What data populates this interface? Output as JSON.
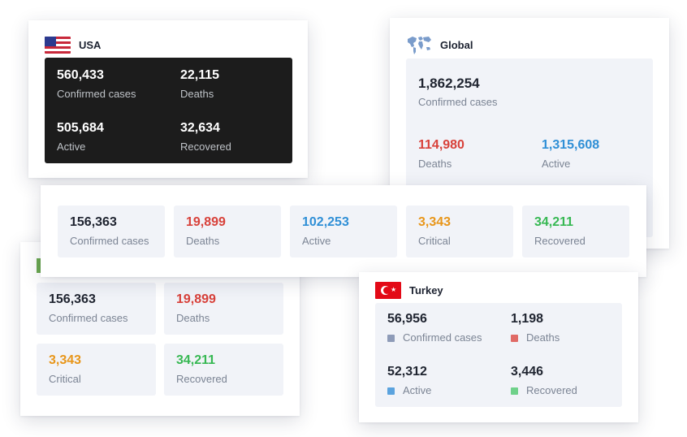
{
  "usa": {
    "title": "USA",
    "stats": [
      {
        "value": "560,433",
        "label": "Confirmed cases"
      },
      {
        "value": "22,115",
        "label": "Deaths"
      },
      {
        "value": "505,684",
        "label": "Active"
      },
      {
        "value": "32,634",
        "label": "Recovered"
      }
    ]
  },
  "global": {
    "title": "Global",
    "confirmed": {
      "value": "1,862,254",
      "label": "Confirmed cases"
    },
    "deaths": {
      "value": "114,980",
      "label": "Deaths"
    },
    "active": {
      "value": "1,315,608",
      "label": "Active"
    }
  },
  "strip": {
    "stats": [
      {
        "value": "156,363",
        "label": "Confirmed cases"
      },
      {
        "value": "19,899",
        "label": "Deaths"
      },
      {
        "value": "102,253",
        "label": "Active"
      },
      {
        "value": "3,343",
        "label": "Critical"
      },
      {
        "value": "34,211",
        "label": "Recovered"
      }
    ]
  },
  "bottom_left": {
    "stats": [
      {
        "value": "156,363",
        "label": "Confirmed cases"
      },
      {
        "value": "19,899",
        "label": "Deaths"
      },
      {
        "value": "3,343",
        "label": "Critical"
      },
      {
        "value": "34,211",
        "label": "Recovered"
      }
    ]
  },
  "turkey": {
    "title": "Turkey",
    "stats": [
      {
        "value": "56,956",
        "label": "Confirmed cases"
      },
      {
        "value": "1,198",
        "label": "Deaths"
      },
      {
        "value": "52,312",
        "label": "Active"
      },
      {
        "value": "3,446",
        "label": "Recovered"
      }
    ]
  },
  "colors": {
    "deaths": "#d8413a",
    "active": "#2f8fd6",
    "critical": "#e8961a",
    "recovered": "#37b853",
    "confirmed_dot": "#8e9bb8",
    "deaths_dot": "#e06a66",
    "active_dot": "#5ba3de",
    "recovered_dot": "#6fd18a"
  },
  "icons": [
    "usa-flag-icon",
    "globe-map-icon",
    "turkey-flag-icon"
  ]
}
